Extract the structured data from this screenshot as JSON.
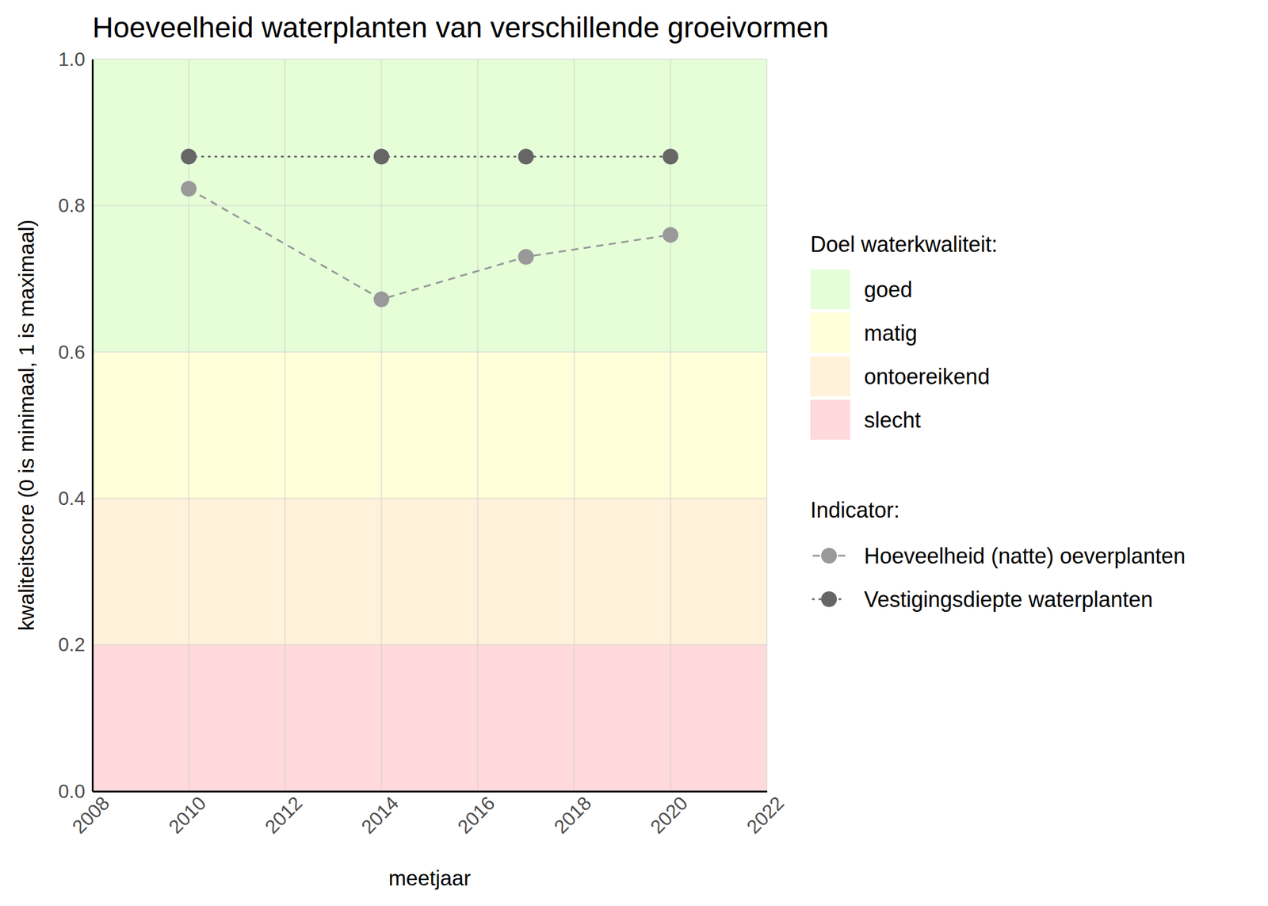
{
  "chart_data": {
    "type": "line",
    "title": "Hoeveelheid waterplanten van verschillende groeivormen",
    "x_label": "meetjaar",
    "y_label": "kwaliteitscore (0 is minimaal, 1 is maximaal)",
    "x": [
      2010,
      2014,
      2017,
      2020
    ],
    "series": [
      {
        "name": "Hoeveelheid (natte) oeverplanten",
        "color": "#999999",
        "line_style": "dashed",
        "marker": "circle",
        "values": [
          0.823,
          0.672,
          0.73,
          0.76
        ]
      },
      {
        "name": "Vestigingsdiepte waterplanten",
        "color": "#666666",
        "line_style": "dotted",
        "marker": "circle",
        "values": [
          0.867,
          0.867,
          0.867,
          0.867
        ]
      }
    ],
    "xlim": [
      2008,
      2022
    ],
    "xticks": [
      2008,
      2010,
      2012,
      2014,
      2016,
      2018,
      2020,
      2022
    ],
    "ylim": [
      0,
      1
    ],
    "yticks": [
      {
        "value": 0,
        "label": "0.0"
      },
      0.2,
      0.4,
      0.6,
      0.8,
      {
        "value": 1,
        "label": "1.0"
      }
    ],
    "grid": true,
    "zones_title": "Doel waterkwaliteit:",
    "zones": [
      {
        "name": "goed",
        "from": 0.6,
        "to": 1.0,
        "color": "#e6fed8"
      },
      {
        "name": "matig",
        "from": 0.4,
        "to": 0.6,
        "color": "#ffffda"
      },
      {
        "name": "ontoereikend",
        "from": 0.2,
        "to": 0.4,
        "color": "#fff1da"
      },
      {
        "name": "slecht",
        "from": 0.0,
        "to": 0.2,
        "color": "#ffd9dc"
      }
    ],
    "legend_title": "Indicator:"
  }
}
